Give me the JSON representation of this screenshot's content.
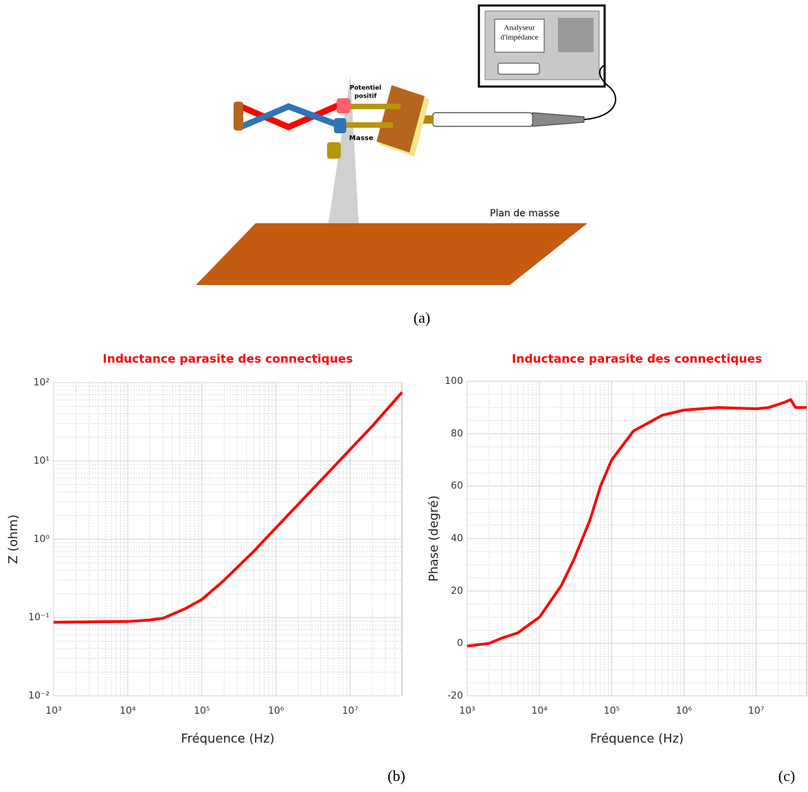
{
  "diagram": {
    "analyzer": [
      "Analyseur",
      "d'impédance"
    ],
    "positive": [
      "Potentiel",
      "positif"
    ],
    "ground": "Masse",
    "plane": "Plan de masse"
  },
  "captions": [
    "(a)",
    "(b)",
    "(c)"
  ],
  "chart_data": [
    {
      "type": "line",
      "title": "Inductance parasite des connectiques",
      "x_label": "Fréquence (Hz)",
      "y_label": "Z (ohm)",
      "x_scale": "log",
      "y_scale": "log",
      "grid": true,
      "minor_grid": true,
      "x": [
        1000,
        3000,
        10000,
        20000,
        30000,
        60000,
        100000,
        200000,
        500000,
        1000000,
        2000000,
        5000000,
        10000000,
        20000000,
        50000000
      ],
      "series": [
        {
          "color": "#ff0000",
          "values": [
            0.087,
            0.088,
            0.089,
            0.093,
            0.098,
            0.13,
            0.17,
            0.3,
            0.7,
            1.4,
            2.8,
            7,
            14,
            28,
            75
          ]
        }
      ],
      "xlim": [
        1000,
        50000000
      ],
      "xticks": [
        {
          "value": 1000,
          "label": "10³"
        },
        {
          "value": 10000,
          "label": "10⁴"
        },
        {
          "value": 100000,
          "label": "10⁵"
        },
        {
          "value": 1000000,
          "label": "10⁶"
        },
        {
          "value": 10000000,
          "label": "10⁷"
        }
      ],
      "ylim": [
        0.01,
        100
      ],
      "yticks": [
        {
          "value": 0.01,
          "label": "10⁻²"
        },
        {
          "value": 0.1,
          "label": "10⁻¹"
        },
        {
          "value": 1,
          "label": "10⁰"
        },
        {
          "value": 10,
          "label": "10¹"
        },
        {
          "value": 100,
          "label": "10²"
        }
      ]
    },
    {
      "type": "line",
      "title": "Inductance parasite des connectiques",
      "x_label": "Fréquence (Hz)",
      "y_label": "Phase (degré)",
      "x_scale": "log",
      "y_scale": "linear",
      "grid": true,
      "minor_grid": true,
      "x": [
        1000,
        2000,
        3000,
        5000,
        10000,
        20000,
        30000,
        50000,
        70000,
        100000,
        200000,
        500000,
        1000000,
        3000000,
        10000000,
        15000000,
        25000000,
        30000000,
        35000000,
        50000000
      ],
      "series": [
        {
          "color": "#ff0000",
          "values": [
            -1,
            0,
            2,
            4,
            10,
            22,
            32,
            47,
            60,
            70,
            81,
            87,
            89,
            90,
            89.5,
            90,
            92,
            93,
            90,
            90
          ]
        }
      ],
      "xlim": [
        1000,
        50000000
      ],
      "xticks": [
        {
          "value": 1000,
          "label": "10³"
        },
        {
          "value": 10000,
          "label": "10⁴"
        },
        {
          "value": 100000,
          "label": "10⁵"
        },
        {
          "value": 1000000,
          "label": "10⁶"
        },
        {
          "value": 10000000,
          "label": "10⁷"
        }
      ],
      "ylim": [
        -20,
        100
      ],
      "yticks": [
        -20,
        0,
        20,
        40,
        60,
        80,
        100
      ]
    }
  ]
}
